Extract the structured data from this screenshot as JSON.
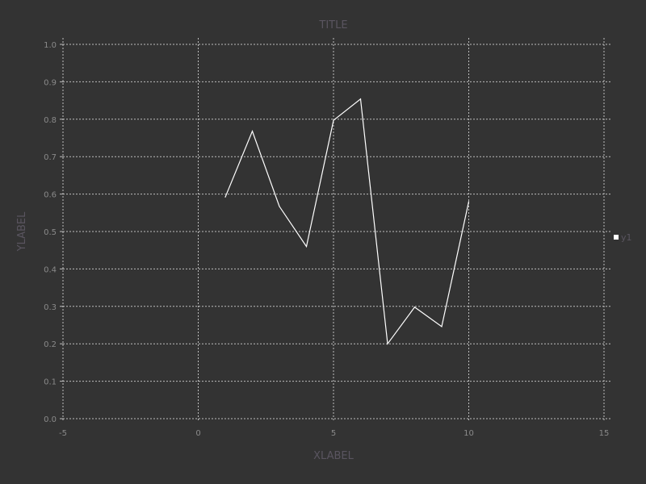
{
  "chart_data": {
    "type": "line",
    "title": "TITLE",
    "xlabel": "XLABEL",
    "ylabel": "YLABEL",
    "xlim": [
      -5,
      15
    ],
    "ylim": [
      0,
      1
    ],
    "xticks": [
      "-5",
      "0",
      "5",
      "10",
      "15"
    ],
    "xtick_values": [
      -5,
      0,
      5,
      10,
      15
    ],
    "yticks": [
      "0.0",
      "0.1",
      "0.2",
      "0.3",
      "0.4",
      "0.5",
      "0.6",
      "0.7",
      "0.8",
      "0.9",
      "1.0"
    ],
    "ytick_values": [
      0,
      0.1,
      0.2,
      0.3,
      0.4,
      0.5,
      0.6,
      0.7,
      0.8,
      0.9,
      1.0
    ],
    "grid": true,
    "legend_position": "right",
    "background_color": "#333333",
    "series": [
      {
        "name": "y1",
        "color": "#ffffff",
        "x": [
          1,
          2,
          3,
          4,
          5,
          6,
          7,
          8,
          9,
          10
        ],
        "y": [
          0.592,
          0.768,
          0.567,
          0.46,
          0.797,
          0.854,
          0.2,
          0.298,
          0.246,
          0.58
        ]
      }
    ]
  }
}
